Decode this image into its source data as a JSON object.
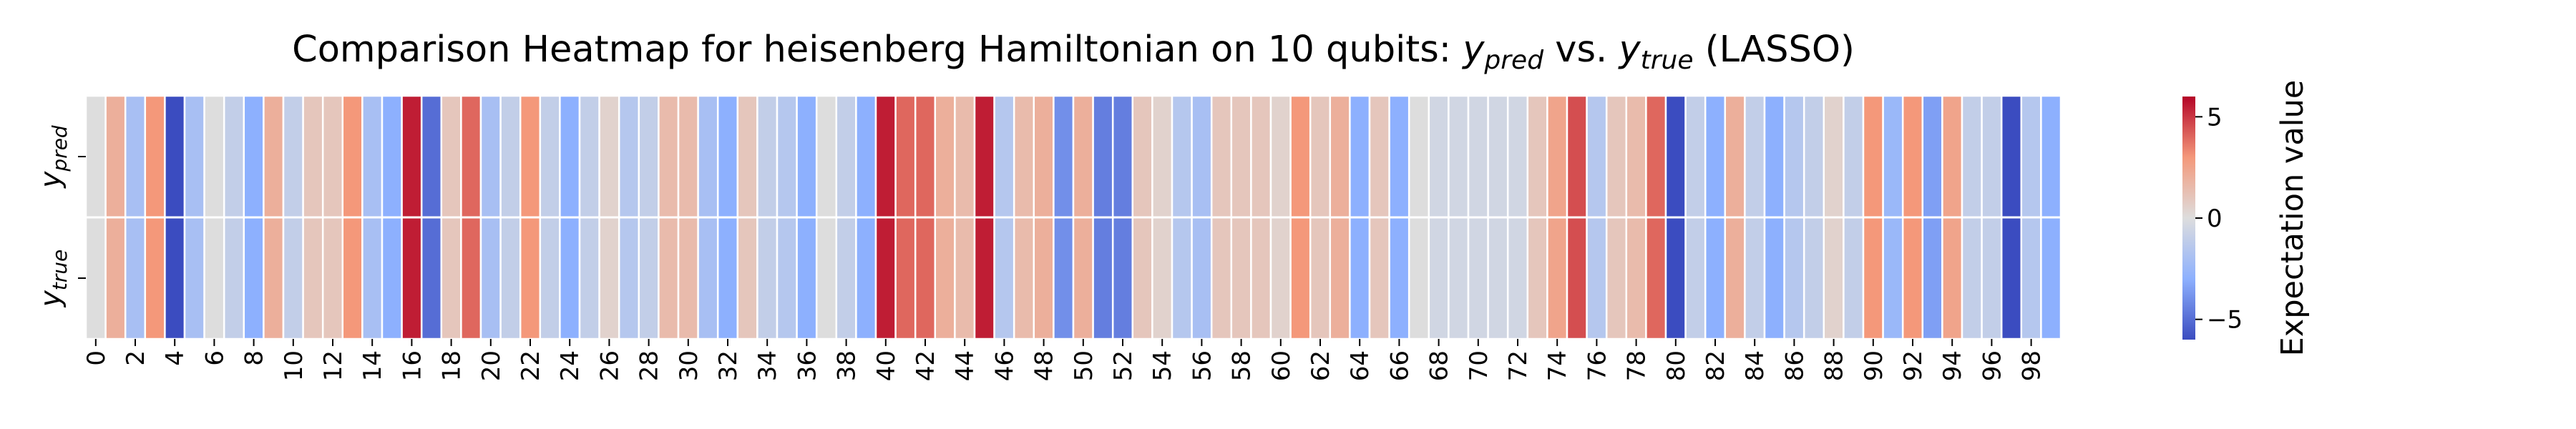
{
  "chart_data": {
    "type": "heatmap",
    "title_parts": {
      "lead": "Comparison Heatmap for heisenberg Hamiltonian on 10 qubits: ",
      "pred_var": "y",
      "pred_sub": "pred",
      "mid": " vs. ",
      "true_var": "y",
      "true_sub": "true",
      "tail": " (LASSO)"
    },
    "row_labels": [
      {
        "var": "y",
        "sub": "pred"
      },
      {
        "var": "y",
        "sub": "true"
      }
    ],
    "x_tick_labels": [
      "0",
      "2",
      "4",
      "6",
      "8",
      "10",
      "12",
      "14",
      "16",
      "18",
      "20",
      "22",
      "24",
      "26",
      "28",
      "30",
      "32",
      "34",
      "36",
      "38",
      "40",
      "42",
      "44",
      "46",
      "48",
      "50",
      "52",
      "54",
      "56",
      "58",
      "60",
      "62",
      "64",
      "66",
      "68",
      "70",
      "72",
      "74",
      "76",
      "78",
      "80",
      "82",
      "84",
      "86",
      "88",
      "90",
      "92",
      "94",
      "96",
      "98"
    ],
    "x_tick_step": 2,
    "colormap": "coolwarm",
    "vmin": -6,
    "vmax": 6,
    "colorbar": {
      "label": "Expectation value",
      "ticks": [
        5,
        0,
        -5
      ],
      "tick_labels": [
        "5",
        "0",
        "−5"
      ]
    },
    "series": [
      {
        "values": [
          0.0,
          2.0,
          -2.0,
          3.0,
          -6.0,
          -2.0,
          0.0,
          -1.0,
          -3.0,
          2.0,
          -1.0,
          1.0,
          1.0,
          3.0,
          -2.0,
          -3.0,
          5.5,
          -5.0,
          1.0,
          4.0,
          -2.0,
          -1.0,
          3.0,
          -1.0,
          -3.0,
          -1.0,
          0.5,
          -1.5,
          -1.0,
          1.5,
          1.5,
          -2.0,
          -3.0,
          1.0,
          -1.0,
          -1.5,
          -3.0,
          0.0,
          -1.0,
          -3.0,
          5.5,
          4.0,
          4.0,
          2.0,
          1.5,
          5.5,
          -1.5,
          1.5,
          2.0,
          -4.0,
          2.0,
          -4.5,
          -4.5,
          1.0,
          0.5,
          -1.5,
          -2.0,
          1.0,
          1.0,
          1.0,
          0.5,
          3.0,
          1.0,
          2.0,
          -3.0,
          1.0,
          -3.0,
          0.0,
          -0.5,
          -0.5,
          -0.5,
          -0.5,
          -0.5,
          1.0,
          2.5,
          4.5,
          -1.5,
          1.0,
          1.5,
          4.0,
          -6.0,
          -1.0,
          -3.0,
          2.0,
          -1.0,
          -3.0,
          -1.5,
          -1.0,
          0.5,
          -1.0,
          3.0,
          -2.5,
          3.0,
          -3.5,
          2.5,
          -1.0,
          -1.0,
          -6.0,
          -1.5,
          -3.0
        ]
      },
      {
        "values": [
          0.0,
          2.0,
          -2.0,
          3.0,
          -6.0,
          -2.0,
          0.0,
          -1.0,
          -3.0,
          2.0,
          -1.0,
          1.0,
          1.0,
          3.0,
          -2.0,
          -3.0,
          5.5,
          -5.0,
          1.0,
          4.0,
          -2.0,
          -1.0,
          3.0,
          -1.0,
          -3.0,
          -1.0,
          0.5,
          -1.5,
          -1.0,
          1.5,
          1.5,
          -2.0,
          -3.0,
          1.0,
          -1.0,
          -1.5,
          -3.0,
          0.0,
          -1.0,
          -3.0,
          5.5,
          4.0,
          4.0,
          2.0,
          1.5,
          5.5,
          -1.5,
          1.5,
          2.0,
          -4.0,
          2.0,
          -4.5,
          -4.5,
          1.0,
          0.5,
          -1.5,
          -2.0,
          1.0,
          1.0,
          1.0,
          0.5,
          3.0,
          1.0,
          2.0,
          -3.0,
          1.0,
          -3.0,
          0.0,
          -0.5,
          -0.5,
          -0.5,
          -0.5,
          -0.5,
          1.0,
          2.5,
          4.5,
          -1.5,
          1.0,
          1.5,
          4.0,
          -6.0,
          -1.0,
          -3.0,
          2.0,
          -1.0,
          -3.0,
          -1.5,
          -1.0,
          0.5,
          -1.0,
          3.0,
          -2.5,
          3.0,
          -3.5,
          2.5,
          -1.0,
          -1.0,
          -6.0,
          -1.5,
          -3.0
        ]
      }
    ],
    "grid": false,
    "legend": "colorbar-right"
  }
}
